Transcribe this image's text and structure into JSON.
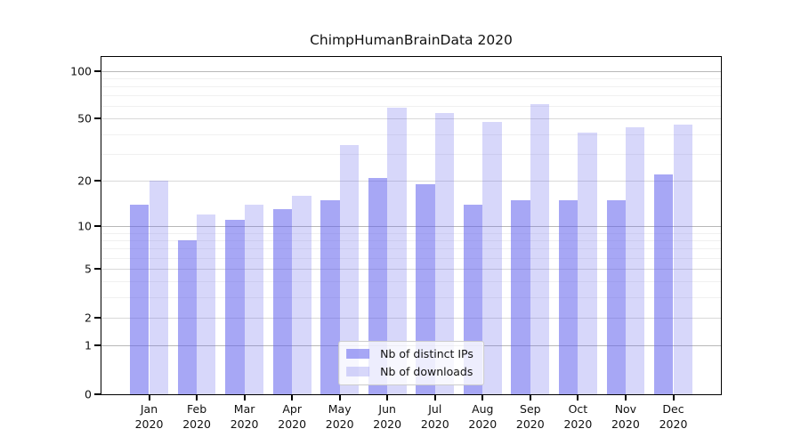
{
  "figure": {
    "title": "ChimpHumanBrainData 2020"
  },
  "chart_data": {
    "type": "bar",
    "title": "ChimpHumanBrainData 2020",
    "scale": "symlog (pixel position proportional to log1p(value))",
    "categories": [
      "Jan",
      "Feb",
      "Mar",
      "Apr",
      "May",
      "Jun",
      "Jul",
      "Aug",
      "Sep",
      "Oct",
      "Nov",
      "Dec"
    ],
    "category_year": "2020",
    "series": [
      {
        "name": "Nb of distinct IPs",
        "color": "rgba(95,95,237,0.55)",
        "values": [
          14,
          8,
          11,
          13,
          15,
          21,
          19,
          14,
          15,
          15,
          15,
          22
        ]
      },
      {
        "name": "Nb of downloads",
        "color": "rgba(95,95,237,0.25)",
        "values": [
          20,
          12,
          14,
          16,
          34,
          59,
          54,
          48,
          62,
          41,
          44,
          46
        ]
      }
    ],
    "yticks": [
      0,
      1,
      2,
      5,
      10,
      20,
      50,
      100
    ],
    "minor_yticks": [
      3,
      4,
      6,
      7,
      8,
      9,
      30,
      40,
      60,
      70,
      80,
      90
    ],
    "ylim": [
      0,
      122
    ],
    "grid": true,
    "legend_position": "lower center",
    "xlabel": "",
    "ylabel": ""
  },
  "colors": {
    "bar_distinct_ips": "rgba(95,95,237,0.55)",
    "bar_downloads": "rgba(95,95,237,0.25)",
    "grid_major": "#d9d9d9",
    "grid_decade": "#b8b8b8",
    "grid_minor": "#f0f0f0",
    "spine": "#000000",
    "text": "#111111"
  }
}
